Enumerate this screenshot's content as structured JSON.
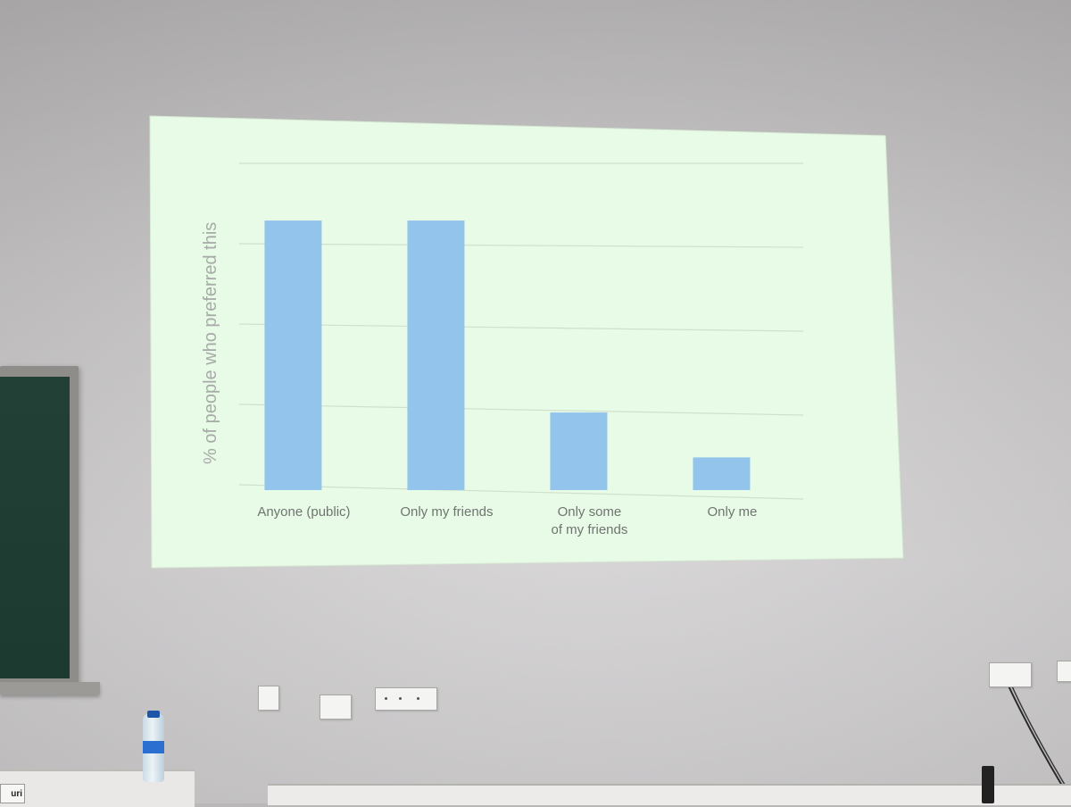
{
  "scene": {
    "wall_color": "#c9c7c8",
    "screen_color": "#e8fbe6",
    "name_card_text": "uri",
    "bottle_label_text": ""
  },
  "chart_data": {
    "type": "bar",
    "title": "",
    "xlabel": "",
    "ylabel": "% of people who preferred this",
    "categories": [
      "Anyone (public)",
      "Only my friends",
      "Only some\nof my friends",
      "Only me"
    ],
    "category_lines": [
      [
        "Anyone (public)"
      ],
      [
        "Only my friends"
      ],
      [
        "Only some",
        "of my friends"
      ],
      [
        "Only me"
      ]
    ],
    "values": [
      33,
      33,
      9.5,
      4
    ],
    "ylim": [
      0,
      40
    ],
    "grid": true,
    "tick_labels_shown": false,
    "bar_color": "#93c4ec"
  }
}
